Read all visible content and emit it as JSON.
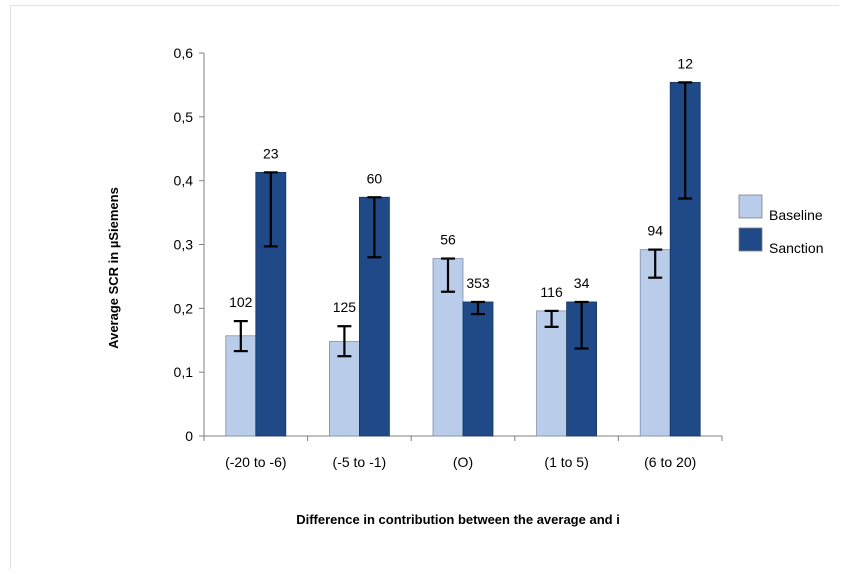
{
  "chart_data": {
    "type": "bar",
    "title": "",
    "xlabel": "Difference in contribution between the average and i",
    "ylabel": "Average SCR in µSiemens",
    "ylim": [
      0,
      0.6
    ],
    "yticks": [
      "0",
      "0,1",
      "0,2",
      "0,3",
      "0,4",
      "0,5",
      "0,6"
    ],
    "categories": [
      "(-20 to -6)",
      "(-5 to -1)",
      "(O)",
      "(1 to 5)",
      "(6 to 20)"
    ],
    "legend_position": "right",
    "grid": false,
    "series": [
      {
        "name": "Baseline",
        "color": "#b9cdeb",
        "values": [
          0.157,
          0.148,
          0.278,
          0.196,
          0.292
        ],
        "error_low": [
          0.133,
          0.125,
          0.226,
          0.171,
          0.248
        ],
        "error_high": [
          0.18,
          0.172,
          0.278,
          0.196,
          0.292
        ],
        "labels": [
          "102",
          "125",
          "56",
          "116",
          "94"
        ]
      },
      {
        "name": "Sanction",
        "color": "#1f4a87",
        "values": [
          0.413,
          0.374,
          0.21,
          0.21,
          0.554
        ],
        "error_low": [
          0.297,
          0.28,
          0.191,
          0.137,
          0.372
        ],
        "error_high": [
          0.413,
          0.374,
          0.21,
          0.21,
          0.554
        ],
        "labels": [
          "23",
          "60",
          "353",
          "34",
          "12"
        ]
      }
    ]
  }
}
